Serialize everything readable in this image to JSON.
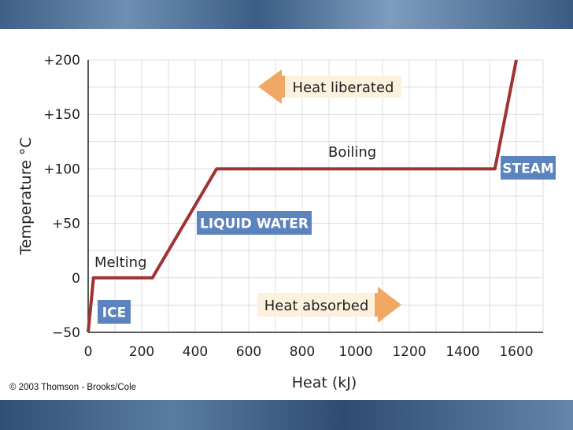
{
  "chart_data": {
    "type": "line",
    "title": "",
    "xlabel": "Heat (kJ)",
    "ylabel": "Temperature °C",
    "xlim": [
      0,
      1700
    ],
    "ylim": [
      -50,
      200
    ],
    "x_ticks": [
      "0",
      "200",
      "400",
      "600",
      "800",
      "1000",
      "1200",
      "1400",
      "1600"
    ],
    "y_ticks": [
      "−50",
      "0",
      "+50",
      "+100",
      "+150",
      "+200"
    ],
    "grid": true,
    "series": [
      {
        "points": [
          [
            0,
            -50
          ],
          [
            20,
            0
          ],
          [
            240,
            0
          ],
          [
            480,
            100
          ],
          [
            1520,
            100
          ],
          [
            1600,
            200
          ]
        ],
        "color": "#a03232"
      }
    ],
    "annotations": {
      "melting": "Melting",
      "boiling": "Boiling",
      "ice": "ICE",
      "liquid_water": "LIQUID WATER",
      "steam": "STEAM",
      "heat_liberated": "Heat liberated",
      "heat_absorbed": "Heat absorbed"
    },
    "colors": {
      "curve": "#a03232",
      "phase_box": "#5b83bd",
      "arrow": "#f0a865",
      "arrow_bg": "#fcf1dc",
      "grid": "#dcdcdc"
    }
  },
  "copyright": "© 2003 Thomson - Brooks/Cole"
}
